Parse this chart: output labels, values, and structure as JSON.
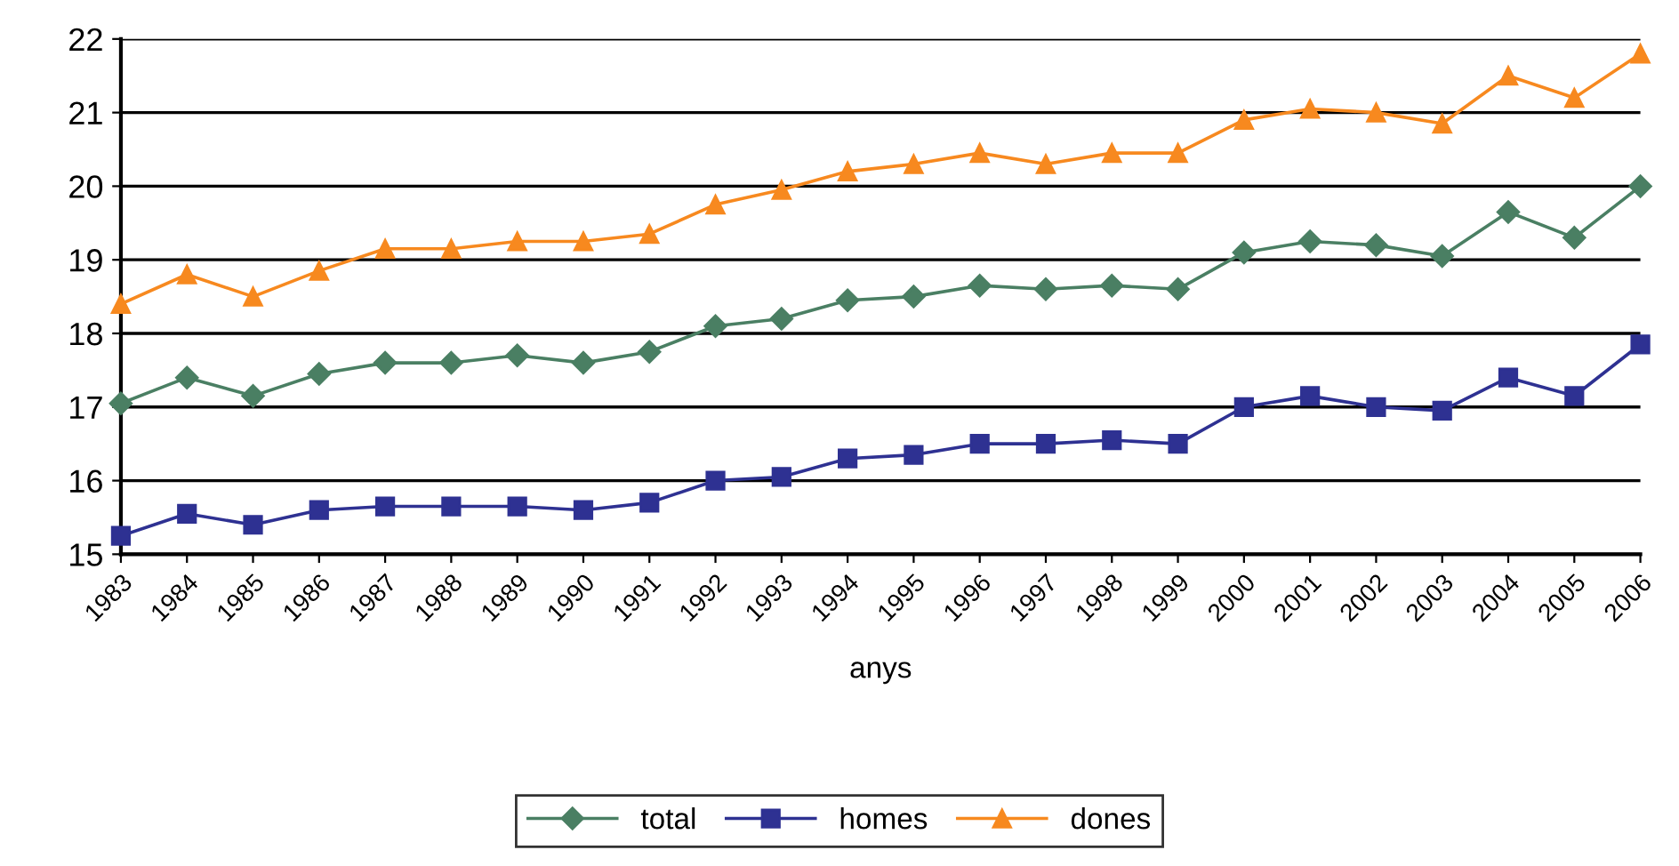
{
  "chart_data": {
    "type": "line",
    "xlabel": "anys",
    "categories": [
      "1983",
      "1984",
      "1985",
      "1986",
      "1987",
      "1988",
      "1989",
      "1990",
      "1991",
      "1992",
      "1993",
      "1994",
      "1995",
      "1996",
      "1997",
      "1998",
      "1999",
      "2000",
      "2001",
      "2002",
      "2003",
      "2004",
      "2005",
      "2006"
    ],
    "series": [
      {
        "name": "total",
        "color": "#4a7f63",
        "marker": "diamond",
        "values": [
          17.05,
          17.4,
          17.15,
          17.45,
          17.6,
          17.6,
          17.7,
          17.6,
          17.75,
          18.1,
          18.2,
          18.45,
          18.5,
          18.65,
          18.6,
          18.65,
          18.6,
          19.1,
          19.25,
          19.2,
          19.05,
          19.65,
          19.3,
          20.0
        ]
      },
      {
        "name": "homes",
        "color": "#2e3192",
        "marker": "square",
        "values": [
          15.25,
          15.55,
          15.4,
          15.6,
          15.65,
          15.65,
          15.65,
          15.6,
          15.7,
          16.0,
          16.05,
          16.3,
          16.35,
          16.5,
          16.5,
          16.55,
          16.5,
          17.0,
          17.15,
          17.0,
          16.95,
          17.4,
          17.15,
          17.85
        ]
      },
      {
        "name": "dones",
        "color": "#f7891f",
        "marker": "triangle",
        "values": [
          18.4,
          18.8,
          18.5,
          18.85,
          19.15,
          19.15,
          19.25,
          19.25,
          19.35,
          19.75,
          19.95,
          20.2,
          20.3,
          20.45,
          20.3,
          20.45,
          20.45,
          20.9,
          21.05,
          21.0,
          20.85,
          21.5,
          21.2,
          21.8
        ]
      }
    ],
    "ylim": [
      15,
      22
    ],
    "yticks": [
      15,
      16,
      17,
      18,
      19,
      20,
      21,
      22
    ],
    "grid": "y",
    "legend": "bottom"
  }
}
